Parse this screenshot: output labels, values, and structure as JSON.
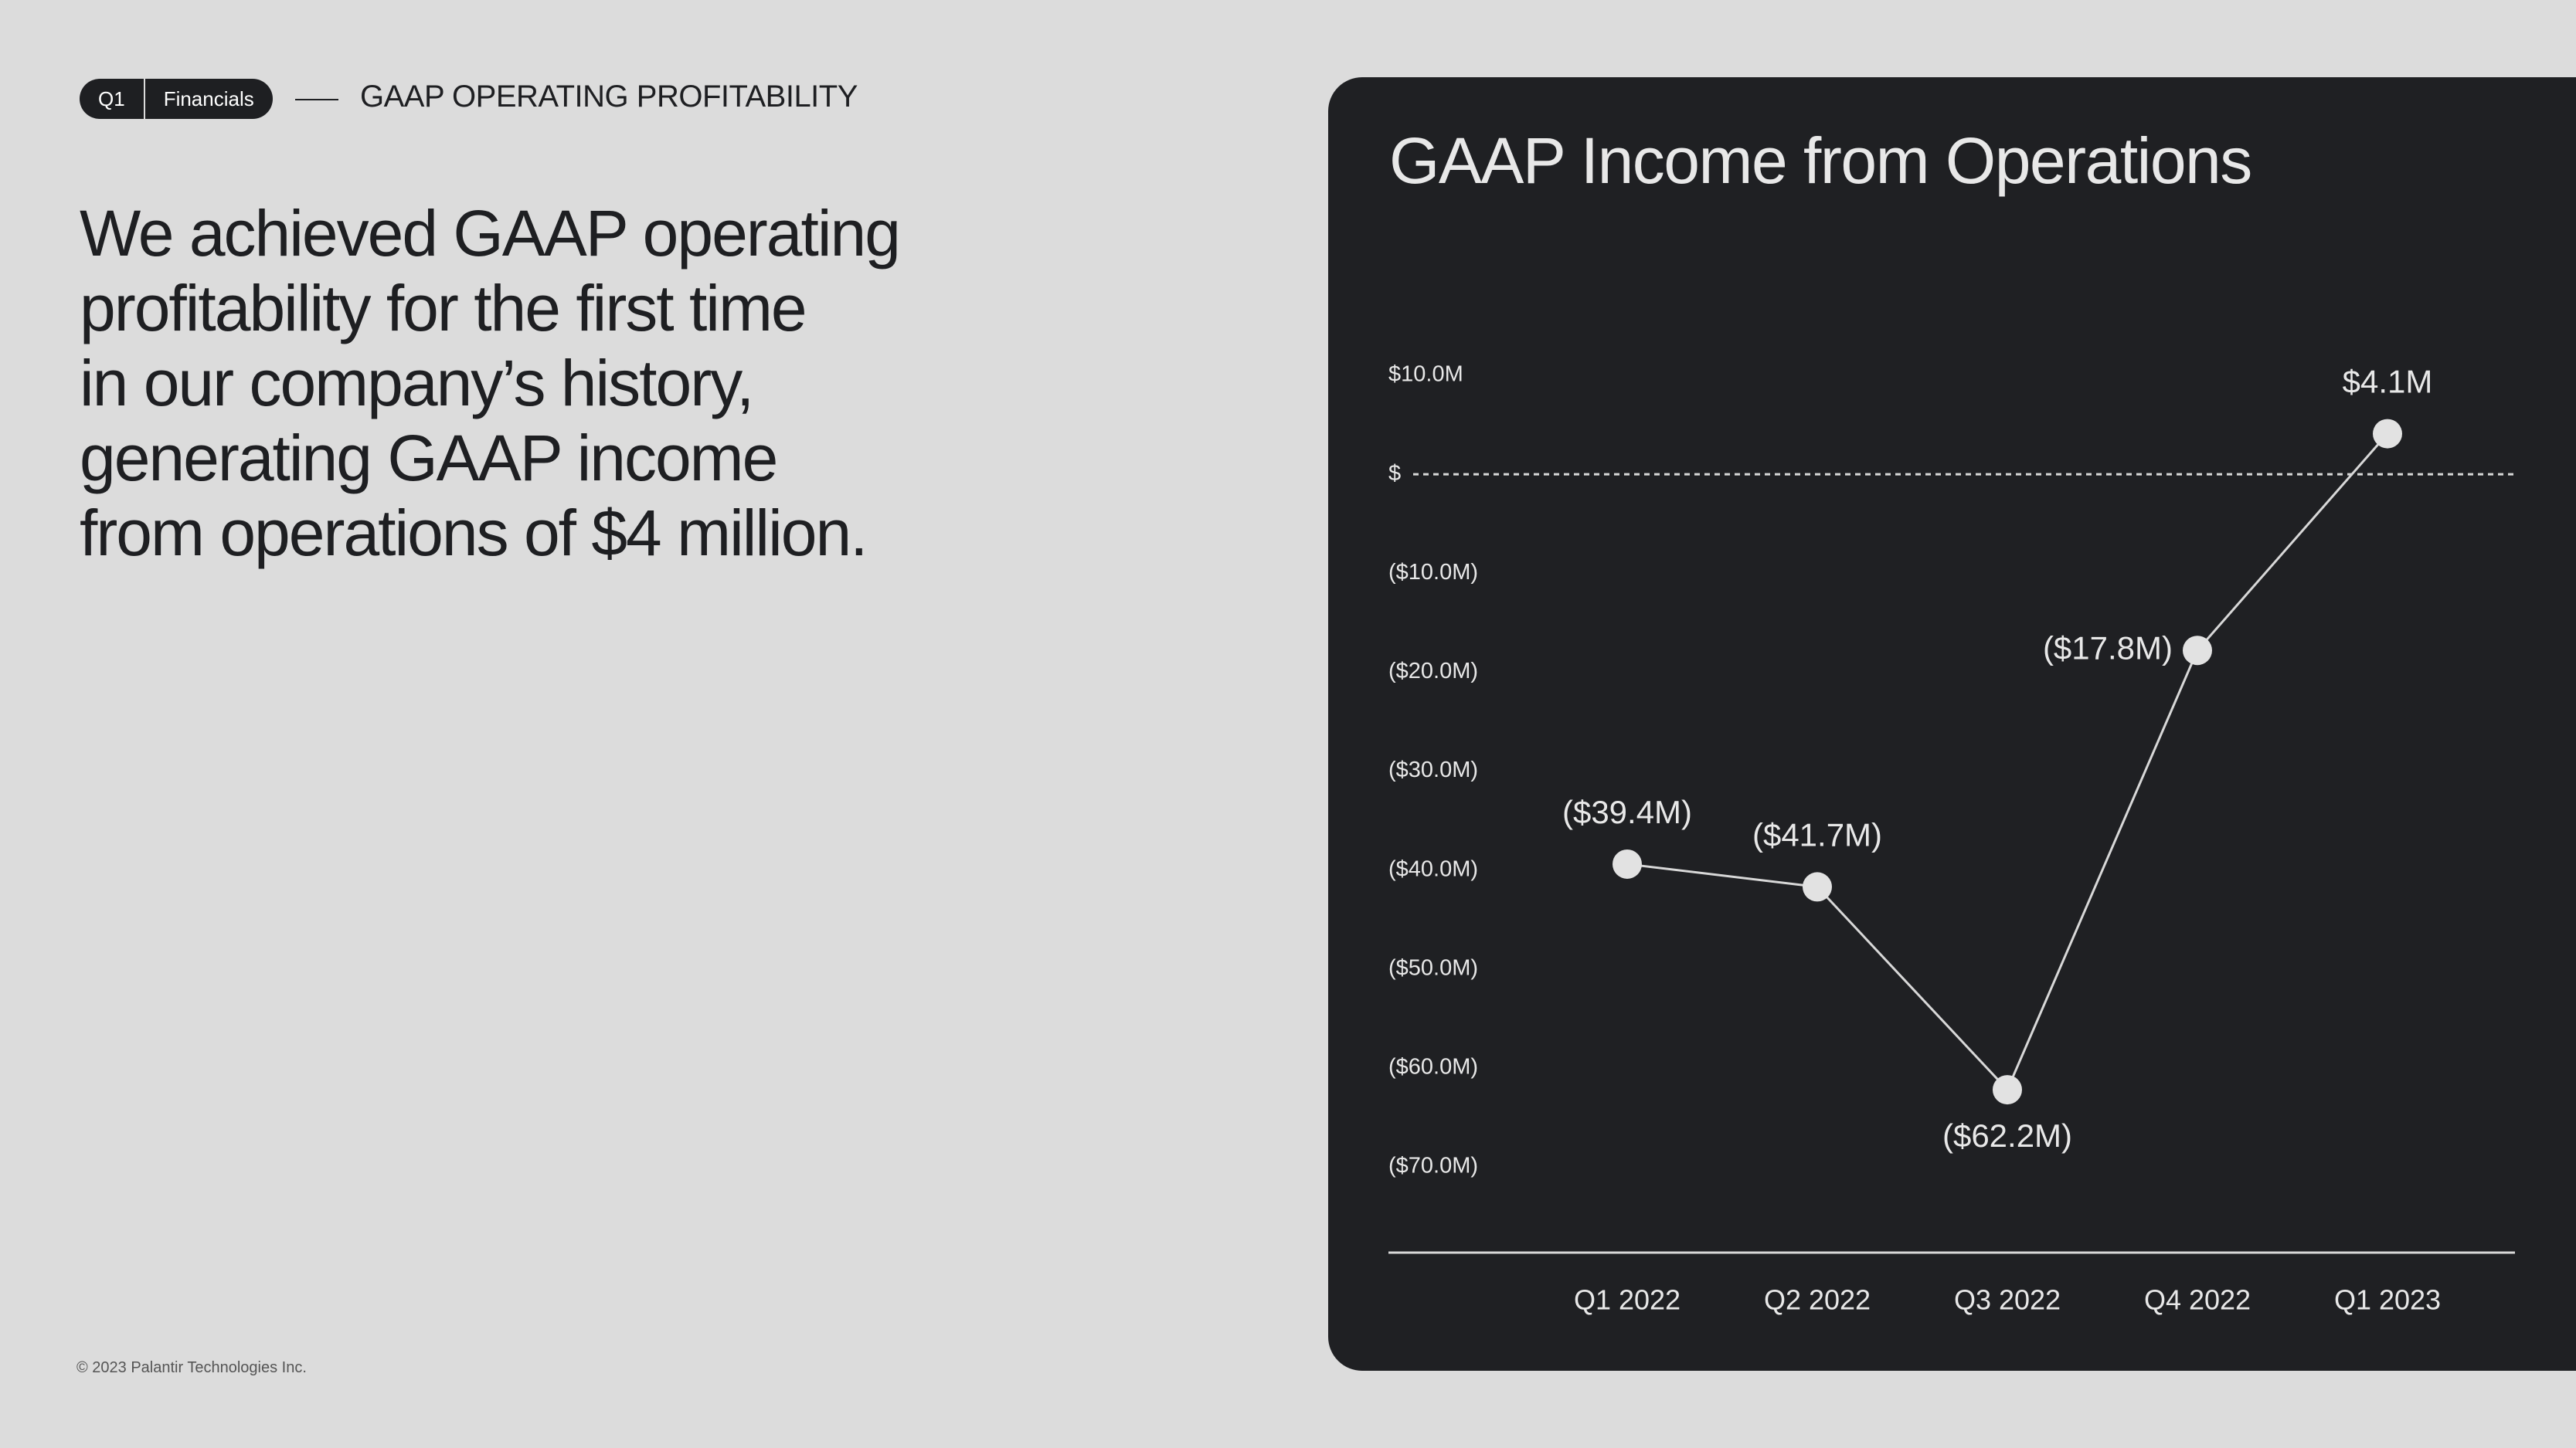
{
  "header": {
    "badge_quarter": "Q1",
    "badge_label": "Financials",
    "section_title": "GAAP OPERATING PROFITABILITY"
  },
  "headline": {
    "lines": [
      "We achieved GAAP operating",
      "profitability for the first time",
      "in our company’s history,",
      "generating GAAP income",
      "from operations of $4 million."
    ]
  },
  "footer": {
    "copyright": "© 2023 Palantir Technologies Inc."
  },
  "colors": {
    "background": "#dcdcdc",
    "panel": "#1f2023",
    "text_dark": "#1e1f22",
    "text_light": "#e8e8e8",
    "marker": "#e2e2e2"
  },
  "chart_data": {
    "type": "line",
    "title": "GAAP Income from Operations",
    "categories": [
      "Q1 2022",
      "Q2 2022",
      "Q3 2022",
      "Q4 2022",
      "Q1 2023"
    ],
    "series": [
      {
        "values": [
          -39.4,
          -41.7,
          -62.2,
          -17.8,
          4.1
        ],
        "data_labels": [
          "($39.4M)",
          "($41.7M)",
          "($62.2M)",
          "($17.8M)",
          "$4.1M"
        ],
        "label_positions": [
          "above",
          "above",
          "below",
          "left",
          "above"
        ]
      }
    ],
    "ylim": [
      -70,
      10
    ],
    "yticks": [
      {
        "value": 10,
        "label": "$10.0M"
      },
      {
        "value": 0,
        "label": "$"
      },
      {
        "value": -10,
        "label": "($10.0M)"
      },
      {
        "value": -20,
        "label": "($20.0M)"
      },
      {
        "value": -30,
        "label": "($30.0M)"
      },
      {
        "value": -40,
        "label": "($40.0M)"
      },
      {
        "value": -50,
        "label": "($50.0M)"
      },
      {
        "value": -60,
        "label": "($60.0M)"
      },
      {
        "value": -70,
        "label": "($70.0M)"
      }
    ],
    "zero_line": "dashed",
    "grid": false,
    "legend": "none"
  }
}
